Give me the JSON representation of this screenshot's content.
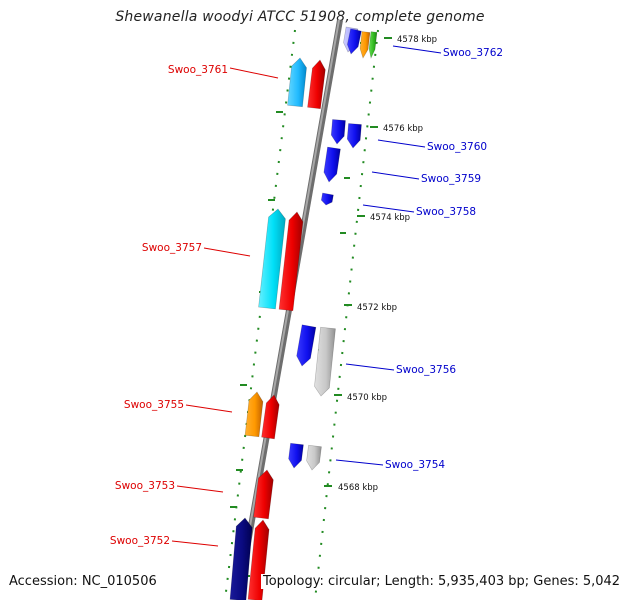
{
  "title": "Shewanella woodyi ATCC 51908, complete genome",
  "accession": "Accession: NC_010506",
  "summary": "Topology: circular; Length: 5,935,403 bp; Genes: 5,042",
  "colors": {
    "backbone": "#888888",
    "tick": "#228b22",
    "label_left": "#dd0000",
    "label_right": "#0000cc",
    "kbp_text": "#111111"
  },
  "genes": [
    {
      "name": "Swoo_3762",
      "side": "right"
    },
    {
      "name": "Swoo_3761",
      "side": "left"
    },
    {
      "name": "Swoo_3760",
      "side": "right"
    },
    {
      "name": "Swoo_3759",
      "side": "right"
    },
    {
      "name": "Swoo_3758",
      "side": "right"
    },
    {
      "name": "Swoo_3757",
      "side": "left"
    },
    {
      "name": "Swoo_3756",
      "side": "right"
    },
    {
      "name": "Swoo_3755",
      "side": "left"
    },
    {
      "name": "Swoo_3754",
      "side": "right"
    },
    {
      "name": "Swoo_3753",
      "side": "left"
    },
    {
      "name": "Swoo_3752",
      "side": "left"
    }
  ],
  "kbp_labels": [
    "4578 kbp",
    "4576 kbp",
    "4574 kbp",
    "4572 kbp",
    "4570 kbp",
    "4568 kbp"
  ]
}
